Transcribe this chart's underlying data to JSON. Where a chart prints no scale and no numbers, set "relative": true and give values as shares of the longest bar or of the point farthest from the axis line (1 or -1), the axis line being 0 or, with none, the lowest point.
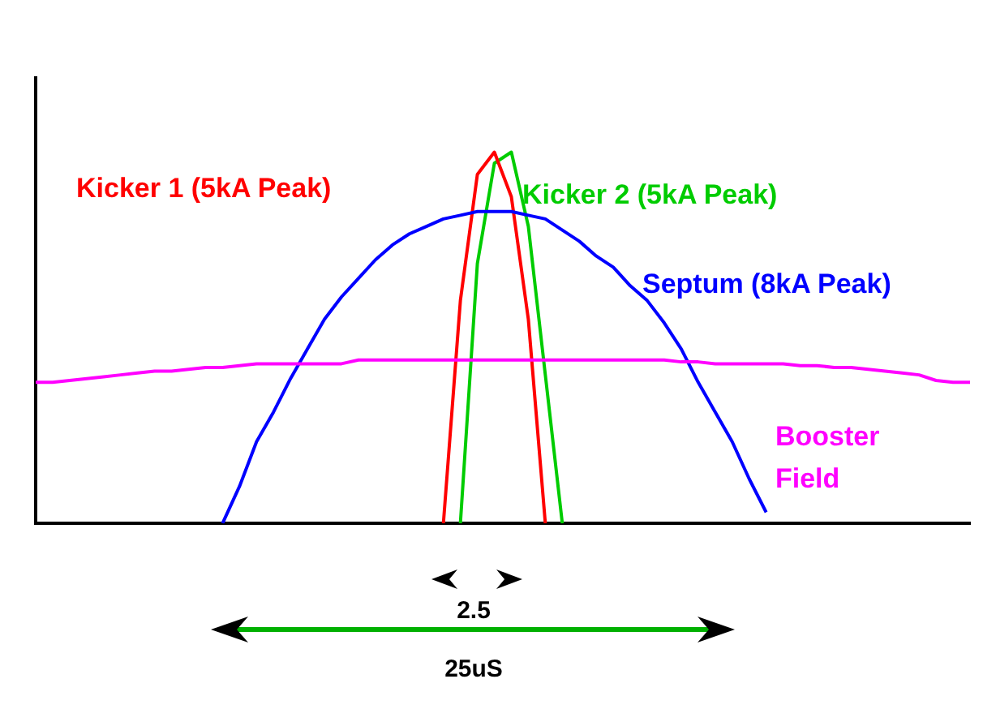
{
  "chart_data": {
    "type": "line",
    "relative": true,
    "categories": [
      null,
      null,
      null,
      null,
      null,
      null,
      null,
      null,
      null,
      null,
      null,
      null,
      null,
      null,
      null,
      null,
      null,
      null,
      null,
      null,
      null,
      null,
      null,
      null,
      null,
      null,
      null,
      null,
      null,
      null,
      null,
      null,
      null,
      null,
      null,
      null,
      null,
      null,
      null,
      null,
      null,
      null,
      null,
      null,
      null,
      null,
      null,
      null,
      null,
      null,
      null,
      null,
      null,
      null,
      null,
      null
    ],
    "series": [
      {
        "name": "Booster Field",
        "color": "#ff00ff",
        "values": [
          0.38,
          0.38,
          0.385,
          0.39,
          0.395,
          0.4,
          0.405,
          0.41,
          0.41,
          0.415,
          0.42,
          0.42,
          0.425,
          0.43,
          0.43,
          0.43,
          0.43,
          0.43,
          0.43,
          0.44,
          0.44,
          0.44,
          0.44,
          0.44,
          0.44,
          0.44,
          0.44,
          0.44,
          0.44,
          0.44,
          0.44,
          0.44,
          0.44,
          0.44,
          0.44,
          0.44,
          0.44,
          0.44,
          0.435,
          0.435,
          0.43,
          0.43,
          0.43,
          0.43,
          0.43,
          0.425,
          0.425,
          0.42,
          0.42,
          0.415,
          0.41,
          0.405,
          0.4,
          0.385,
          0.38,
          0.38
        ]
      },
      {
        "name": "Septum (8kA Peak)",
        "color": "#0000ff",
        "values": [
          null,
          null,
          null,
          null,
          null,
          null,
          null,
          null,
          null,
          null,
          null,
          0,
          0.1,
          0.22,
          0.3,
          0.39,
          0.47,
          0.55,
          0.61,
          0.66,
          0.71,
          0.75,
          0.78,
          0.8,
          0.82,
          0.83,
          0.84,
          0.84,
          0.84,
          0.83,
          0.82,
          0.79,
          0.76,
          0.72,
          0.69,
          0.64,
          0.6,
          0.54,
          0.47,
          0.38,
          0.3,
          0.22,
          0.12,
          0.03,
          null,
          null,
          null,
          null,
          null,
          null,
          null,
          null,
          null,
          null,
          null,
          null
        ]
      },
      {
        "name": "Kicker 1 (5kA Peak)",
        "color": "#ff0000",
        "values": [
          null,
          null,
          null,
          null,
          null,
          null,
          null,
          null,
          null,
          null,
          null,
          null,
          null,
          null,
          null,
          null,
          null,
          null,
          null,
          null,
          null,
          null,
          null,
          null,
          0,
          0.6,
          0.94,
          1,
          0.88,
          0.55,
          0,
          null,
          null,
          null,
          null,
          null,
          null,
          null,
          null,
          null,
          null,
          null,
          null,
          null,
          null,
          null,
          null,
          null,
          null,
          null,
          null,
          null,
          null,
          null,
          null,
          null
        ]
      },
      {
        "name": "Kicker 2 (5kA Peak)",
        "color": "#00cc00",
        "values": [
          null,
          null,
          null,
          null,
          null,
          null,
          null,
          null,
          null,
          null,
          null,
          null,
          null,
          null,
          null,
          null,
          null,
          null,
          null,
          null,
          null,
          null,
          null,
          null,
          null,
          0,
          0.7,
          0.97,
          1,
          0.8,
          0.4,
          0,
          null,
          null,
          null,
          null,
          null,
          null,
          null,
          null,
          null,
          null,
          null,
          null,
          null,
          null,
          null,
          null,
          null,
          null,
          null,
          null,
          null,
          null,
          null,
          null
        ]
      }
    ],
    "annotations": [
      "2.5",
      "25uS"
    ]
  }
}
